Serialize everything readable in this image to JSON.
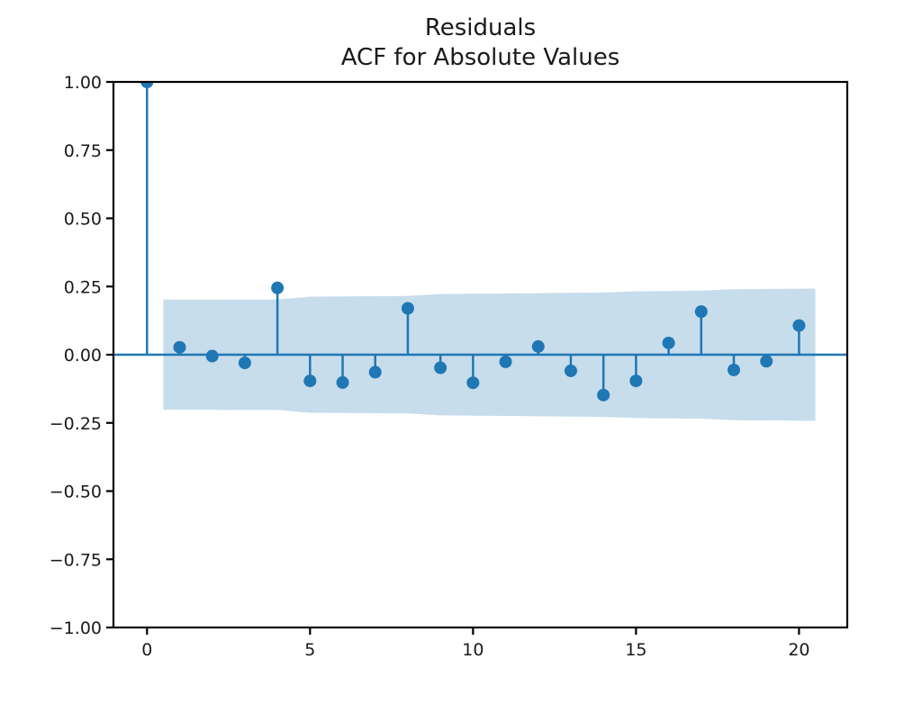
{
  "figure": {
    "background": "#ffffff"
  },
  "chart_data": {
    "type": "stem",
    "title_lines": [
      "Residuals",
      "ACF for Absolute Values"
    ],
    "xlabel": "",
    "ylabel": "",
    "x": [
      0,
      1,
      2,
      3,
      4,
      5,
      6,
      7,
      8,
      9,
      10,
      11,
      12,
      13,
      14,
      15,
      16,
      17,
      18,
      19,
      20
    ],
    "values": [
      1.0,
      0.027,
      -0.005,
      -0.03,
      0.245,
      -0.096,
      -0.102,
      -0.064,
      0.17,
      -0.048,
      -0.103,
      -0.026,
      0.03,
      -0.059,
      -0.148,
      -0.096,
      0.043,
      0.158,
      -0.056,
      -0.024,
      0.107
    ],
    "xlim": [
      -1.03,
      21.48
    ],
    "ylim": [
      -1.0,
      1.0
    ],
    "grid": false,
    "legend": "none",
    "x_ticks": [
      {
        "v": 0,
        "label": "0"
      },
      {
        "v": 5,
        "label": "5"
      },
      {
        "v": 10,
        "label": "10"
      },
      {
        "v": 15,
        "label": "15"
      },
      {
        "v": 20,
        "label": "20"
      }
    ],
    "y_ticks": [
      {
        "v": 1.0,
        "label": "1.00"
      },
      {
        "v": 0.75,
        "label": "0.75"
      },
      {
        "v": 0.5,
        "label": "0.50"
      },
      {
        "v": 0.25,
        "label": "0.25"
      },
      {
        "v": 0.0,
        "label": "0.00"
      },
      {
        "v": -0.25,
        "label": "−0.25"
      },
      {
        "v": -0.5,
        "label": "−0.50"
      },
      {
        "v": -0.75,
        "label": "−0.75"
      },
      {
        "v": -1.0,
        "label": "−1.00"
      }
    ],
    "confidence_band": {
      "symmetric_about_zero": true,
      "points": [
        {
          "lag": 0.5,
          "ci": 0.202
        },
        {
          "lag": 1,
          "ci": 0.202
        },
        {
          "lag": 2,
          "ci": 0.2022
        },
        {
          "lag": 3,
          "ci": 0.2025
        },
        {
          "lag": 4,
          "ci": 0.2028
        },
        {
          "lag": 5,
          "ci": 0.213
        },
        {
          "lag": 6,
          "ci": 0.2138
        },
        {
          "lag": 7,
          "ci": 0.2145
        },
        {
          "lag": 8,
          "ci": 0.2152
        },
        {
          "lag": 9,
          "ci": 0.2225
        },
        {
          "lag": 10,
          "ci": 0.2235
        },
        {
          "lag": 11,
          "ci": 0.2245
        },
        {
          "lag": 12,
          "ci": 0.2258
        },
        {
          "lag": 13,
          "ci": 0.227
        },
        {
          "lag": 14,
          "ci": 0.2282
        },
        {
          "lag": 15,
          "ci": 0.2325
        },
        {
          "lag": 16,
          "ci": 0.2335
        },
        {
          "lag": 17,
          "ci": 0.2345
        },
        {
          "lag": 18,
          "ci": 0.2398
        },
        {
          "lag": 19,
          "ci": 0.2408
        },
        {
          "lag": 20,
          "ci": 0.242
        },
        {
          "lag": 20.5,
          "ci": 0.2425
        }
      ]
    },
    "zero_line": 0.0,
    "colors": {
      "stem": "#1f77b4",
      "marker": "#1f77b4",
      "band_fill": "#1f77b4",
      "band_opacity": 0.25,
      "axis": "#000000",
      "text": "#1a1a1a",
      "background": "#ffffff"
    }
  }
}
